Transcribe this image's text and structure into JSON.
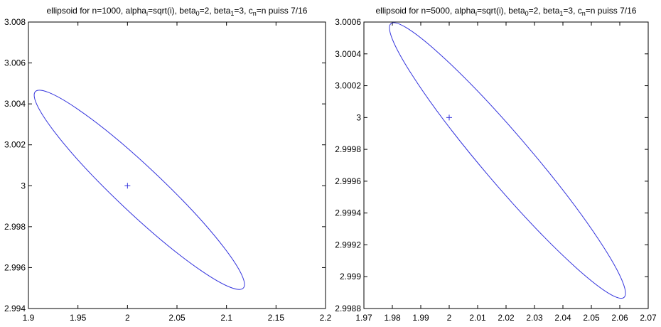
{
  "chart_data": [
    {
      "type": "line",
      "title": {
        "parts": [
          {
            "text": "ellipsoid for n=1000, alpha",
            "sub": false
          },
          {
            "text": "i",
            "sub": true
          },
          {
            "text": "=sqrt(i), beta",
            "sub": false
          },
          {
            "text": "0",
            "sub": true
          },
          {
            "text": "=2, beta",
            "sub": false
          },
          {
            "text": "1",
            "sub": true
          },
          {
            "text": "=3, c",
            "sub": false
          },
          {
            "text": "n",
            "sub": true
          },
          {
            "text": "=n puiss 7/16",
            "sub": false
          }
        ]
      },
      "xlim": [
        1.9,
        2.2
      ],
      "ylim": [
        2.994,
        3.008
      ],
      "xticks": [
        1.9,
        1.95,
        2.0,
        2.05,
        2.1,
        2.15,
        2.2
      ],
      "xtick_labels": [
        "1.9",
        "1.95",
        "2",
        "2.05",
        "2.1",
        "2.15",
        "2.2"
      ],
      "yticks": [
        2.994,
        2.996,
        2.998,
        3.0,
        3.002,
        3.004,
        3.006,
        3.008
      ],
      "ytick_labels": [
        "2.994",
        "2.996",
        "2.998",
        "3",
        "3.002",
        "3.004",
        "3.006",
        "3.008"
      ],
      "grid": false,
      "line_color": "#3333dd",
      "center": {
        "x": 2.0,
        "y": 3.0,
        "marker": "+"
      },
      "ellipse": {
        "center": [
          2.0,
          3.0
        ],
        "vertex_a": [
          1.907,
          3.0046
        ],
        "vertex_b": [
          2.117,
          2.995
        ]
      }
    },
    {
      "type": "line",
      "title": {
        "parts": [
          {
            "text": "ellipsoid for n=5000, alpha",
            "sub": false
          },
          {
            "text": "i",
            "sub": true
          },
          {
            "text": "=sqrt(i), beta",
            "sub": false
          },
          {
            "text": "0",
            "sub": true
          },
          {
            "text": "=2, beta",
            "sub": false
          },
          {
            "text": "1",
            "sub": true
          },
          {
            "text": "=3, c",
            "sub": false
          },
          {
            "text": "n",
            "sub": true
          },
          {
            "text": "=n puiss 7/16",
            "sub": false
          }
        ]
      },
      "xlim": [
        1.97,
        2.07
      ],
      "ylim": [
        2.9988,
        3.0006
      ],
      "xticks": [
        1.97,
        1.98,
        1.99,
        2.0,
        2.01,
        2.02,
        2.03,
        2.04,
        2.05,
        2.06,
        2.07
      ],
      "xtick_labels": [
        "1.97",
        "1.98",
        "1.99",
        "2",
        "2.01",
        "2.02",
        "2.03",
        "2.04",
        "2.05",
        "2.06",
        "2.07"
      ],
      "yticks": [
        2.9988,
        2.999,
        2.9992,
        2.9994,
        2.9996,
        2.9998,
        3.0,
        3.0002,
        3.0004,
        3.0006
      ],
      "ytick_labels": [
        "2.9988",
        "2.999",
        "2.9992",
        "2.9994",
        "2.9996",
        "2.9998",
        "3",
        "3.0002",
        "3.0004",
        "3.0006"
      ],
      "grid": false,
      "line_color": "#3333dd",
      "center": {
        "x": 2.0,
        "y": 3.0,
        "marker": "+"
      },
      "ellipse": {
        "center": [
          2.0,
          3.0
        ],
        "vertex_a": [
          1.9795,
          3.00059
        ],
        "vertex_b": [
          2.0615,
          2.99887
        ]
      }
    }
  ]
}
